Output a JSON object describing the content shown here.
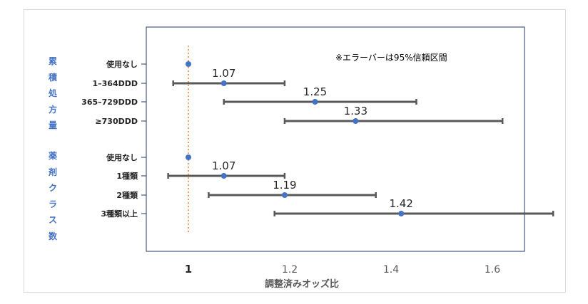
{
  "chart_data": {
    "type": "forest",
    "note": "※エラーバーは95%信頼区間",
    "xlabel": "調整済みオッズ比",
    "xticks": [
      "1",
      "1.2",
      "1.4",
      "1.6"
    ],
    "xlim": [
      0.9,
      1.8
    ],
    "reference_line": 1,
    "colors": {
      "point": "#4472c4",
      "bar": "#595959",
      "reference": "#ed7d31",
      "group_label": "#4472c4"
    },
    "groups": [
      {
        "name": "累積処方量",
        "rows": [
          {
            "label": "使用なし",
            "or": 1,
            "lo": null,
            "hi": null,
            "value_label": ""
          },
          {
            "label": "1–364DDD",
            "or": 1.07,
            "lo": 0.97,
            "hi": 1.19,
            "value_label": "1.07"
          },
          {
            "label": "365–729DDD",
            "or": 1.25,
            "lo": 1.07,
            "hi": 1.45,
            "value_label": "1.25"
          },
          {
            "label": "≥730DDD",
            "or": 1.33,
            "lo": 1.19,
            "hi": 1.62,
            "value_label": "1.33"
          }
        ]
      },
      {
        "name": "薬剤クラス数",
        "rows": [
          {
            "label": "使用なし",
            "or": 1,
            "lo": null,
            "hi": null,
            "value_label": ""
          },
          {
            "label": "1種類",
            "or": 1.07,
            "lo": 0.96,
            "hi": 1.19,
            "value_label": "1.07"
          },
          {
            "label": "2種類",
            "or": 1.19,
            "lo": 1.04,
            "hi": 1.37,
            "value_label": "1.19"
          },
          {
            "label": "3種類以上",
            "or": 1.42,
            "lo": 1.17,
            "hi": 1.72,
            "value_label": "1.42"
          }
        ]
      }
    ]
  }
}
